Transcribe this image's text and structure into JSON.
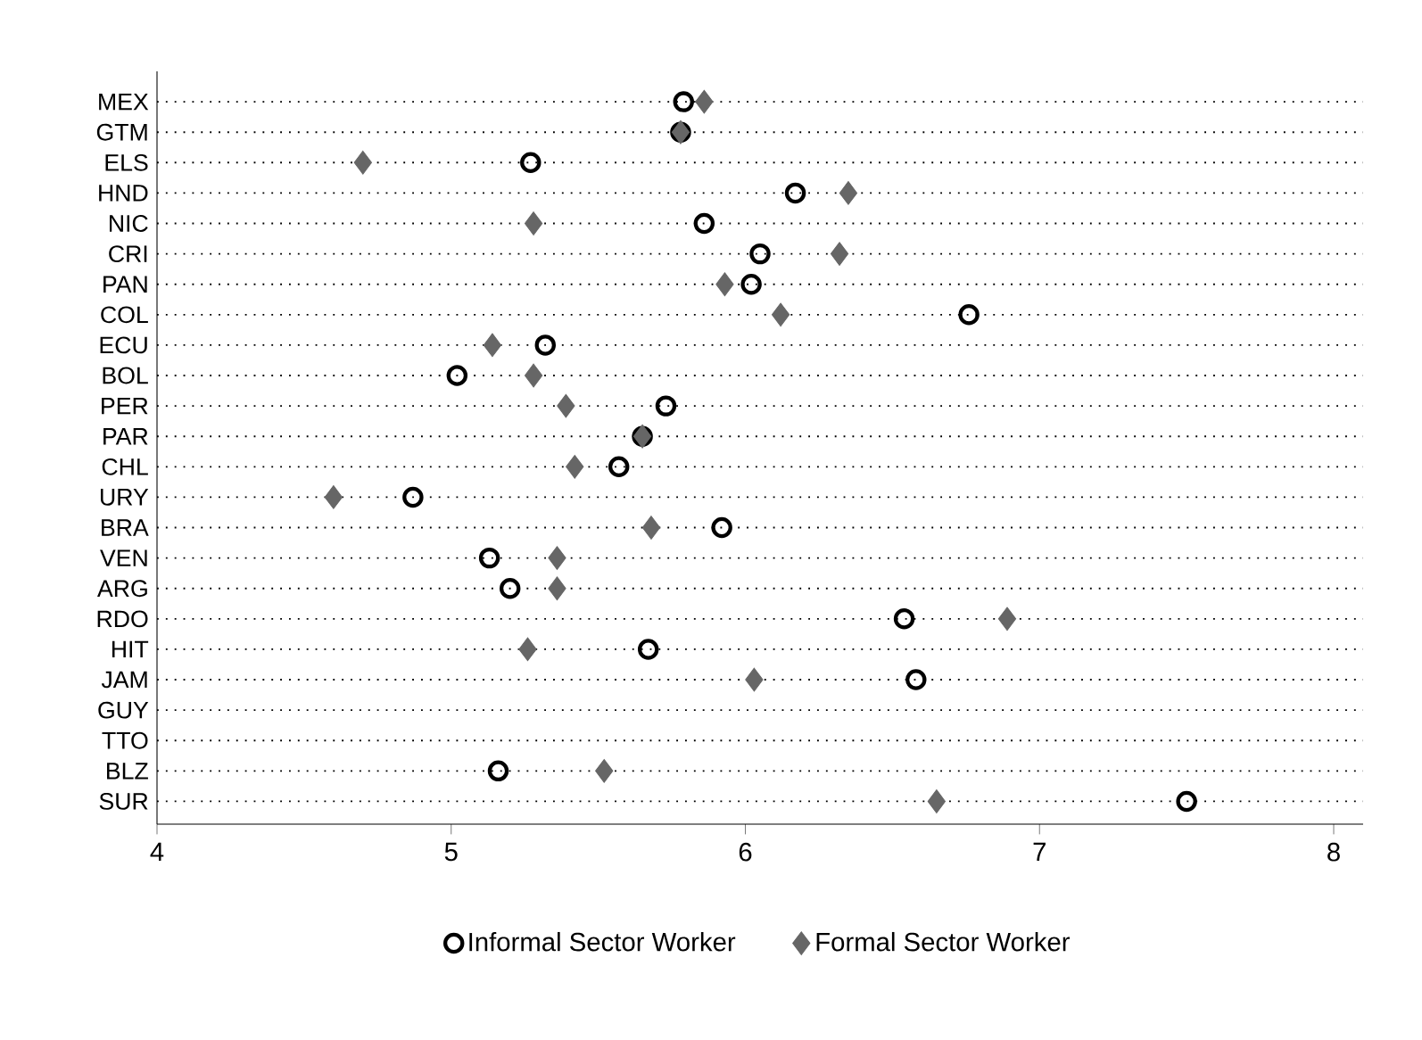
{
  "chart_data": {
    "type": "scatter",
    "orientation": "horizontal",
    "categories": [
      "MEX",
      "GTM",
      "ELS",
      "HND",
      "NIC",
      "CRI",
      "PAN",
      "COL",
      "ECU",
      "BOL",
      "PER",
      "PAR",
      "CHL",
      "URY",
      "BRA",
      "VEN",
      "ARG",
      "RDO",
      "HIT",
      "JAM",
      "GUY",
      "TTO",
      "BLZ",
      "SUR"
    ],
    "series": [
      {
        "name": "Informal Sector Worker",
        "color": "#000000",
        "marker": "circle",
        "values": [
          5.79,
          5.78,
          5.27,
          6.17,
          5.86,
          6.05,
          6.02,
          6.76,
          5.32,
          5.02,
          5.73,
          5.65,
          5.57,
          4.87,
          5.92,
          5.13,
          5.2,
          6.54,
          5.67,
          6.58,
          null,
          null,
          5.16,
          7.5
        ]
      },
      {
        "name": "Formal Sector Worker",
        "color": "#666666",
        "marker": "diamond",
        "values": [
          5.86,
          5.78,
          4.7,
          6.35,
          5.28,
          6.32,
          5.93,
          6.12,
          5.14,
          5.28,
          5.39,
          5.65,
          5.42,
          4.6,
          5.68,
          5.36,
          5.36,
          6.89,
          5.26,
          6.03,
          null,
          null,
          5.52,
          6.65
        ]
      }
    ],
    "xlim": [
      4,
      8.1
    ],
    "xticks": [
      4,
      5,
      6,
      7,
      8
    ],
    "grid": "y",
    "legend": "bottom"
  }
}
